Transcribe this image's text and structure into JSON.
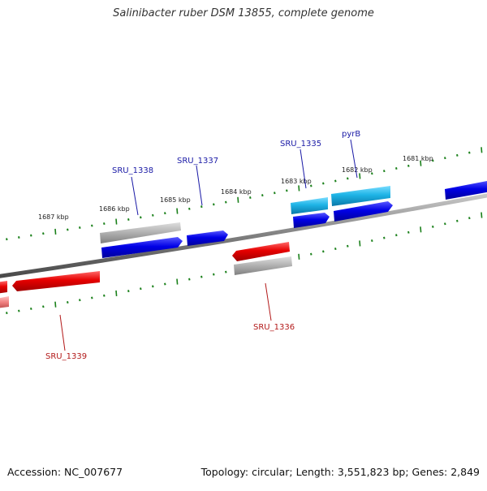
{
  "title": "Salinibacter ruber DSM 13855, complete genome",
  "footer": {
    "accession": "Accession: NC_007677",
    "summary": "Topology: circular; Length: 3,551,823 bp; Genes: 2,849"
  },
  "ruler": {
    "labels": [
      "1687 kbp",
      "1686 kbp",
      "1685 kbp",
      "1684 kbp",
      "1683 kbp",
      "1682 kbp",
      "1681 kbp"
    ]
  },
  "genes": {
    "sru_1338": "SRU_1338",
    "sru_1337": "SRU_1337",
    "sru_1335": "SRU_1335",
    "pyrb": "pyrB",
    "sru_1336": "SRU_1336",
    "sru_1339": "SRU_1339"
  },
  "colors": {
    "backbone": "#7f7f7f",
    "forward_gene": "#0000e6",
    "reverse_gene": "#e60000",
    "pseudo_gene": "#a0a0a0",
    "highlight_gene": "#1eb4e6",
    "tick": "#1a801a",
    "label_forward": "#1a1aa6",
    "label_reverse": "#b31a1a",
    "ruler_text": "#222222"
  }
}
